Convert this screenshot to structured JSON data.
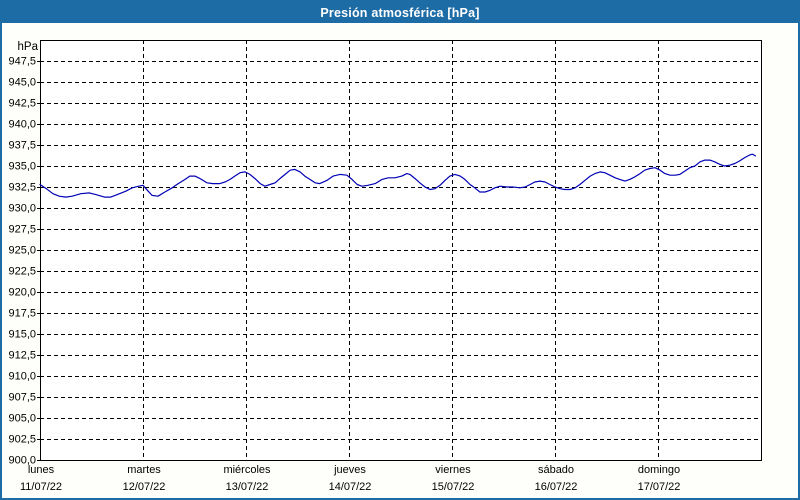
{
  "title": "Presión atmosférica [hPa]",
  "colors": {
    "frame": "#1E6CA6",
    "titlebar_bg": "#1E6CA6",
    "title_text": "#FFFFFF",
    "line": "#0000B4",
    "grid": "#000000",
    "axis": "#000000",
    "text": "#000000",
    "plot_bg": "#FFFFFF"
  },
  "chart_data": {
    "type": "line",
    "title": "Presión atmosférica [hPa]",
    "unit_label": "hPa",
    "ylim": [
      900,
      950
    ],
    "xlim_hours": [
      0,
      168
    ],
    "grid": "dashed",
    "legend": "none",
    "y_ticks": [
      {
        "v": 947.5,
        "label": "947,5"
      },
      {
        "v": 945.0,
        "label": "945,0"
      },
      {
        "v": 942.5,
        "label": "942,5"
      },
      {
        "v": 940.0,
        "label": "940,0"
      },
      {
        "v": 937.5,
        "label": "937,5"
      },
      {
        "v": 935.0,
        "label": "935,0"
      },
      {
        "v": 932.5,
        "label": "932,5"
      },
      {
        "v": 930.0,
        "label": "930,0"
      },
      {
        "v": 927.5,
        "label": "927,5"
      },
      {
        "v": 925.0,
        "label": "925,0"
      },
      {
        "v": 922.5,
        "label": "922,5"
      },
      {
        "v": 920.0,
        "label": "920,0"
      },
      {
        "v": 917.5,
        "label": "917,5"
      },
      {
        "v": 915.0,
        "label": "915,0"
      },
      {
        "v": 912.5,
        "label": "912,5"
      },
      {
        "v": 910.0,
        "label": "910,0"
      },
      {
        "v": 907.5,
        "label": "907,5"
      },
      {
        "v": 905.0,
        "label": "905,0"
      },
      {
        "v": 902.5,
        "label": "902,5"
      },
      {
        "v": 900.0,
        "label": "900,0"
      }
    ],
    "x_days": [
      {
        "name": "lunes",
        "date": "11/07/22"
      },
      {
        "name": "martes",
        "date": "12/07/22"
      },
      {
        "name": "miércoles",
        "date": "13/07/22"
      },
      {
        "name": "jueves",
        "date": "14/07/22"
      },
      {
        "name": "viernes",
        "date": "15/07/22"
      },
      {
        "name": "sábado",
        "date": "16/07/22"
      },
      {
        "name": "domingo",
        "date": "17/07/22"
      }
    ],
    "series": [
      {
        "name": "Presión atmosférica",
        "points": [
          [
            0,
            932.8
          ],
          [
            1.5,
            932.3
          ],
          [
            3,
            931.7
          ],
          [
            4.5,
            931.4
          ],
          [
            6,
            931.3
          ],
          [
            7.5,
            931.4
          ],
          [
            9.5,
            931.7
          ],
          [
            11.5,
            931.8
          ],
          [
            13,
            931.6
          ],
          [
            15,
            931.3
          ],
          [
            16.5,
            931.3
          ],
          [
            18,
            931.6
          ],
          [
            20,
            932.0
          ],
          [
            21.5,
            932.4
          ],
          [
            23,
            932.6
          ],
          [
            24,
            932.7
          ],
          [
            25.2,
            932.0
          ],
          [
            26.1,
            931.5
          ],
          [
            27.5,
            931.4
          ],
          [
            29.1,
            931.9
          ],
          [
            30.8,
            932.4
          ],
          [
            32.2,
            932.9
          ],
          [
            33.8,
            933.4
          ],
          [
            34.9,
            933.8
          ],
          [
            36.1,
            933.8
          ],
          [
            37.3,
            933.5
          ],
          [
            38.9,
            933.0
          ],
          [
            40.3,
            932.9
          ],
          [
            41.9,
            932.9
          ],
          [
            43.1,
            933.1
          ],
          [
            44.3,
            933.4
          ],
          [
            45.4,
            933.8
          ],
          [
            46.6,
            934.2
          ],
          [
            47.8,
            934.3
          ],
          [
            48.9,
            934.0
          ],
          [
            50.1,
            933.5
          ],
          [
            51.3,
            932.9
          ],
          [
            52.4,
            932.6
          ],
          [
            53.6,
            932.8
          ],
          [
            54.8,
            933.0
          ],
          [
            55.9,
            933.5
          ],
          [
            57.1,
            934.0
          ],
          [
            58.3,
            934.5
          ],
          [
            59.4,
            934.6
          ],
          [
            60.6,
            934.3
          ],
          [
            61.7,
            933.8
          ],
          [
            62.9,
            933.4
          ],
          [
            64.1,
            933.0
          ],
          [
            65.2,
            932.9
          ],
          [
            66.9,
            933.3
          ],
          [
            68.3,
            933.8
          ],
          [
            69.9,
            934.0
          ],
          [
            71.5,
            933.9
          ],
          [
            72.7,
            933.4
          ],
          [
            73.9,
            932.8
          ],
          [
            75,
            932.6
          ],
          [
            76.4,
            932.7
          ],
          [
            78.1,
            932.9
          ],
          [
            79.7,
            933.4
          ],
          [
            81.1,
            933.6
          ],
          [
            82.7,
            933.6
          ],
          [
            84.3,
            933.8
          ],
          [
            85.5,
            934.1
          ],
          [
            86.2,
            934.0
          ],
          [
            87.4,
            933.5
          ],
          [
            88.5,
            933.0
          ],
          [
            89.7,
            932.5
          ],
          [
            90.9,
            932.2
          ],
          [
            92,
            932.3
          ],
          [
            93.2,
            932.7
          ],
          [
            94.4,
            933.3
          ],
          [
            95.5,
            933.8
          ],
          [
            96.7,
            934.0
          ],
          [
            97.9,
            933.8
          ],
          [
            99,
            933.4
          ],
          [
            100.2,
            932.8
          ],
          [
            101.3,
            932.4
          ],
          [
            102.5,
            931.9
          ],
          [
            103.7,
            931.9
          ],
          [
            104.8,
            932.1
          ],
          [
            106,
            932.4
          ],
          [
            107.2,
            932.6
          ],
          [
            108.8,
            932.5
          ],
          [
            110.2,
            932.5
          ],
          [
            111.8,
            932.4
          ],
          [
            113,
            932.5
          ],
          [
            114.2,
            932.8
          ],
          [
            115.3,
            933.1
          ],
          [
            116.5,
            933.2
          ],
          [
            117.7,
            933.1
          ],
          [
            118.8,
            932.8
          ],
          [
            120,
            932.5
          ],
          [
            121.2,
            932.3
          ],
          [
            122.3,
            932.2
          ],
          [
            123.5,
            932.2
          ],
          [
            124.7,
            932.4
          ],
          [
            125.8,
            932.8
          ],
          [
            127,
            933.3
          ],
          [
            128.2,
            933.8
          ],
          [
            129.3,
            934.1
          ],
          [
            130.5,
            934.3
          ],
          [
            131.6,
            934.2
          ],
          [
            132.8,
            933.9
          ],
          [
            134,
            933.6
          ],
          [
            135.1,
            933.4
          ],
          [
            136.3,
            933.2
          ],
          [
            137.4,
            933.4
          ],
          [
            138.6,
            933.7
          ],
          [
            139.8,
            934.1
          ],
          [
            140.9,
            934.5
          ],
          [
            142.1,
            934.7
          ],
          [
            143.3,
            934.8
          ],
          [
            144.5,
            934.5
          ],
          [
            145.6,
            934.1
          ],
          [
            146.8,
            933.9
          ],
          [
            148,
            933.9
          ],
          [
            149.1,
            934.0
          ],
          [
            150.3,
            934.4
          ],
          [
            151.4,
            934.8
          ],
          [
            152.6,
            935.0
          ],
          [
            153.8,
            935.5
          ],
          [
            154.9,
            935.7
          ],
          [
            156.1,
            935.7
          ],
          [
            157.2,
            935.5
          ],
          [
            158.4,
            935.2
          ],
          [
            159.5,
            935.0
          ],
          [
            160.7,
            935.1
          ],
          [
            161.9,
            935.3
          ],
          [
            163,
            935.6
          ],
          [
            164.2,
            936.0
          ],
          [
            165.3,
            936.3
          ],
          [
            166,
            936.4
          ],
          [
            166.7,
            936.2
          ]
        ]
      }
    ]
  }
}
